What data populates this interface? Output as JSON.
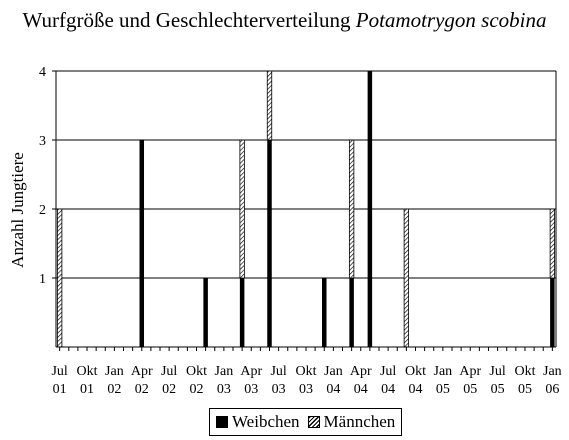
{
  "chart_data": {
    "type": "bar",
    "stacked": true,
    "title": "Wurfgröße und Geschlechterverteilung",
    "title_species": "Potamotrygon scobina",
    "ylabel": "Anzahl Jungtiere",
    "xlabel": "",
    "ylim": [
      0,
      4
    ],
    "yticks": [
      1,
      2,
      3,
      4
    ],
    "grid": true,
    "legend_position": "bottom",
    "x_unit": "month",
    "x_range": [
      "2001-07",
      "2006-01"
    ],
    "x_ticks": [
      {
        "month": "2001-07",
        "label": [
          "Jul",
          "01"
        ]
      },
      {
        "month": "2001-10",
        "label": [
          "Okt",
          "01"
        ]
      },
      {
        "month": "2002-01",
        "label": [
          "Jan",
          "02"
        ]
      },
      {
        "month": "2002-04",
        "label": [
          "Apr",
          "02"
        ]
      },
      {
        "month": "2002-07",
        "label": [
          "Jul",
          "02"
        ]
      },
      {
        "month": "2002-10",
        "label": [
          "Okt",
          "02"
        ]
      },
      {
        "month": "2003-01",
        "label": [
          "Jan",
          "03"
        ]
      },
      {
        "month": "2003-04",
        "label": [
          "Apr",
          "03"
        ]
      },
      {
        "month": "2003-07",
        "label": [
          "Jul",
          "03"
        ]
      },
      {
        "month": "2003-10",
        "label": [
          "Okt",
          "03"
        ]
      },
      {
        "month": "2004-01",
        "label": [
          "Jan",
          "04"
        ]
      },
      {
        "month": "2004-04",
        "label": [
          "Apr",
          "04"
        ]
      },
      {
        "month": "2004-07",
        "label": [
          "Jul",
          "04"
        ]
      },
      {
        "month": "2004-10",
        "label": [
          "Okt",
          "04"
        ]
      },
      {
        "month": "2005-01",
        "label": [
          "Jan",
          "05"
        ]
      },
      {
        "month": "2005-04",
        "label": [
          "Apr",
          "05"
        ]
      },
      {
        "month": "2005-07",
        "label": [
          "Jul",
          "05"
        ]
      },
      {
        "month": "2005-10",
        "label": [
          "Okt",
          "05"
        ]
      },
      {
        "month": "2006-01",
        "label": [
          "Jan",
          "06"
        ]
      }
    ],
    "series": [
      {
        "name": "Weibchen",
        "color": "#000000",
        "pattern": "solid"
      },
      {
        "name": "Männchen",
        "color": "#000000",
        "pattern": "hatched"
      }
    ],
    "litters": [
      {
        "month": "2001-07",
        "values": [
          0,
          2
        ]
      },
      {
        "month": "2002-04",
        "values": [
          3,
          0
        ]
      },
      {
        "month": "2002-11",
        "values": [
          1,
          0
        ]
      },
      {
        "month": "2003-03",
        "values": [
          1,
          2
        ]
      },
      {
        "month": "2003-06",
        "values": [
          3,
          1
        ]
      },
      {
        "month": "2003-12",
        "values": [
          1,
          0
        ]
      },
      {
        "month": "2004-03",
        "values": [
          1,
          2
        ]
      },
      {
        "month": "2004-05",
        "values": [
          4,
          0
        ]
      },
      {
        "month": "2004-09",
        "values": [
          0,
          2
        ]
      },
      {
        "month": "2006-01",
        "values": [
          1,
          1
        ]
      }
    ]
  }
}
